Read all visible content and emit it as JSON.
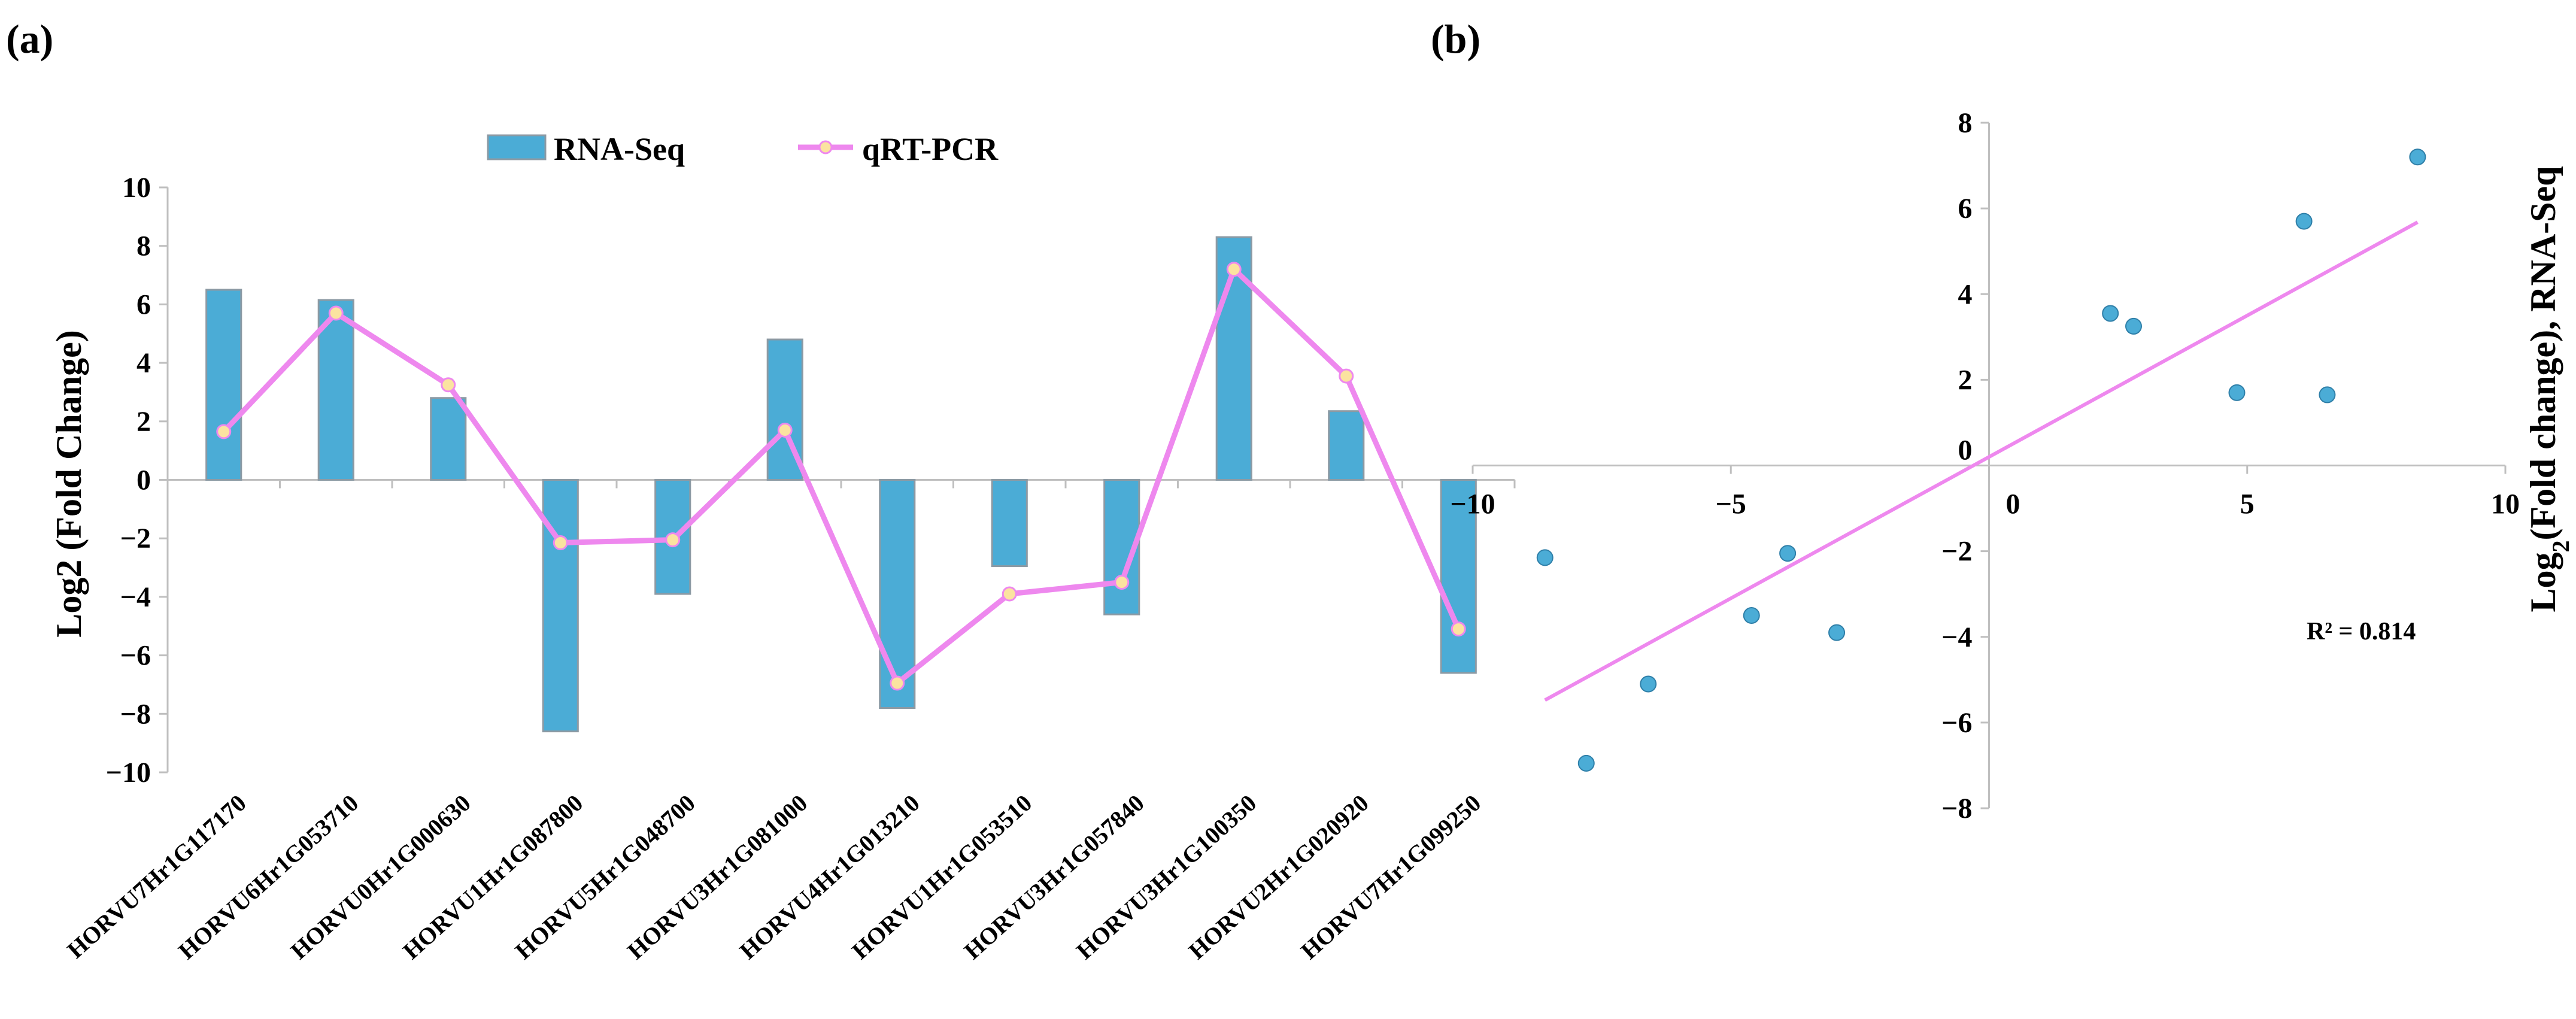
{
  "chart_data": [
    {
      "type": "bar+line",
      "panel_label": "(a)",
      "ylabel": "Log2 (Fold Change)",
      "ylim": [
        -10,
        10
      ],
      "yticks": [
        "10",
        "8",
        "6",
        "4",
        "2",
        "0",
        "−2",
        "−4",
        "−6",
        "−8",
        "−10"
      ],
      "categories": [
        "HORVU7Hr1G117170",
        "HORVU6Hr1G053710",
        "HORVU0Hr1G000630",
        "HORVU1Hr1G087800",
        "HORVU5Hr1G048700",
        "HORVU3Hr1G081000",
        "HORVU4Hr1G013210",
        "HORVU1Hr1G053510",
        "HORVU3Hr1G057840",
        "HORVU3Hr1G100350",
        "HORVU2Hr1G020920",
        "HORVU7Hr1G099250"
      ],
      "series": [
        {
          "name": "RNA-Seq",
          "kind": "bar",
          "color": "#4bacd6",
          "values": [
            6.5,
            6.15,
            2.8,
            -8.6,
            -3.9,
            4.8,
            -7.8,
            -2.95,
            -4.6,
            8.3,
            2.35,
            -6.6
          ]
        },
        {
          "name": "qRT-PCR",
          "kind": "line",
          "color": "#ee88ee",
          "values": [
            1.65,
            5.7,
            3.25,
            -2.15,
            -2.05,
            1.7,
            -6.95,
            -3.9,
            -3.5,
            7.2,
            3.55,
            -5.1
          ]
        }
      ]
    },
    {
      "type": "scatter",
      "panel_label": "(b)",
      "ylabel_main": "Log",
      "ylabel_sub": "2",
      "ylabel_rest": "(Fold change),  RNA-Seq",
      "xlim": [
        -10,
        10
      ],
      "ylim": [
        -8,
        8
      ],
      "xticks": [
        "−10",
        "−5",
        "0",
        "5",
        "10"
      ],
      "yticks": [
        "8",
        "6",
        "4",
        "2",
        "0",
        "−2",
        "−4",
        "−6",
        "−8"
      ],
      "points": [
        {
          "x": 8.3,
          "y": 7.2
        },
        {
          "x": 6.1,
          "y": 5.7
        },
        {
          "x": 2.35,
          "y": 3.55
        },
        {
          "x": 2.8,
          "y": 3.25
        },
        {
          "x": 4.8,
          "y": 1.7
        },
        {
          "x": 6.55,
          "y": 1.65
        },
        {
          "x": -8.6,
          "y": -2.15
        },
        {
          "x": -3.9,
          "y": -2.05
        },
        {
          "x": -4.6,
          "y": -3.5
        },
        {
          "x": -2.95,
          "y": -3.9
        },
        {
          "x": -6.6,
          "y": -5.1
        },
        {
          "x": -7.8,
          "y": -6.95
        }
      ],
      "trendline": {
        "slope": 0.66,
        "intercept": 0.2,
        "x_range": [
          -8.6,
          8.3
        ],
        "color": "#ee88ee"
      },
      "point_color": "#4bacd6",
      "annotation": "R² = 0.814"
    }
  ]
}
